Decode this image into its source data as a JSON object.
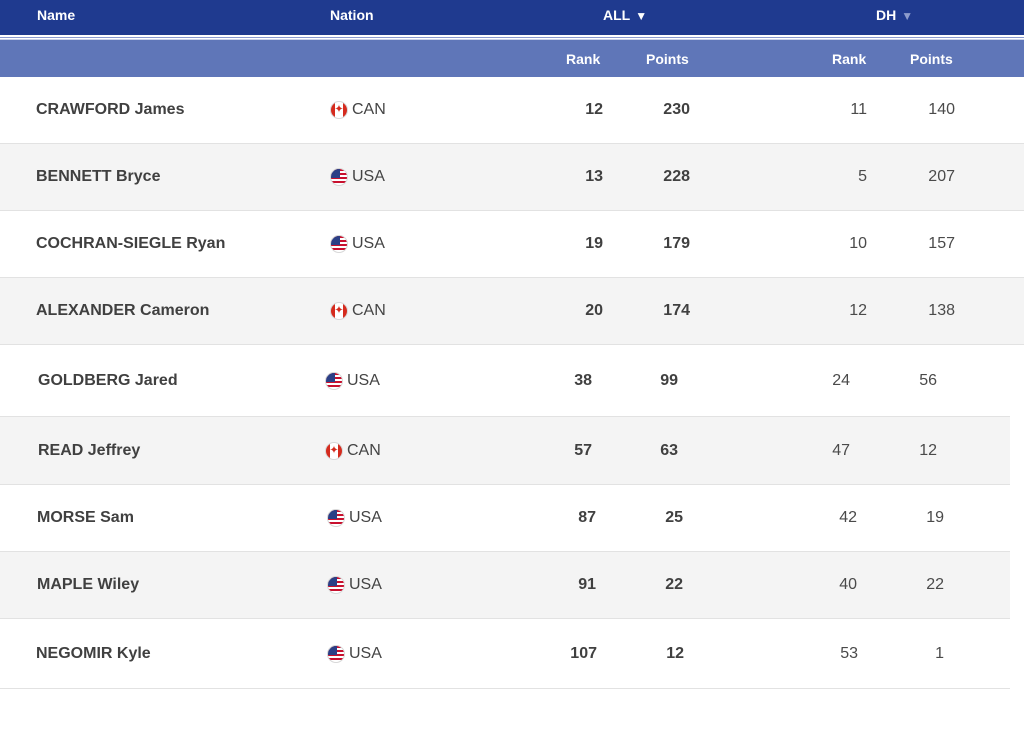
{
  "header": {
    "name_label": "Name",
    "nation_label": "Nation",
    "all_label": "ALL",
    "dh_label": "DH",
    "sort_glyph": "▼",
    "rank_label": "Rank",
    "points_label": "Points"
  },
  "colors": {
    "header_top": "#1f3a8f",
    "header_sub": "#5f76b8",
    "row_alt": "#f4f4f4"
  },
  "icons": {
    "CAN": "canada-flag-icon",
    "USA": "usa-flag-icon"
  },
  "rows": [
    {
      "name": "CRAWFORD James",
      "nation": "CAN",
      "all_rank": "12",
      "all_points": "230",
      "dh_rank": "11",
      "dh_points": "140"
    },
    {
      "name": "BENNETT Bryce",
      "nation": "USA",
      "all_rank": "13",
      "all_points": "228",
      "dh_rank": "5",
      "dh_points": "207"
    },
    {
      "name": "COCHRAN-SIEGLE Ryan",
      "nation": "USA",
      "all_rank": "19",
      "all_points": "179",
      "dh_rank": "10",
      "dh_points": "157"
    },
    {
      "name": "ALEXANDER Cameron",
      "nation": "CAN",
      "all_rank": "20",
      "all_points": "174",
      "dh_rank": "12",
      "dh_points": "138"
    },
    {
      "name": "GOLDBERG Jared",
      "nation": "USA",
      "all_rank": "38",
      "all_points": "99",
      "dh_rank": "24",
      "dh_points": "56"
    },
    {
      "name": "READ Jeffrey",
      "nation": "CAN",
      "all_rank": "57",
      "all_points": "63",
      "dh_rank": "47",
      "dh_points": "12"
    },
    {
      "name": "MORSE Sam",
      "nation": "USA",
      "all_rank": "87",
      "all_points": "25",
      "dh_rank": "42",
      "dh_points": "19"
    },
    {
      "name": "MAPLE Wiley",
      "nation": "USA",
      "all_rank": "91",
      "all_points": "22",
      "dh_rank": "40",
      "dh_points": "22"
    },
    {
      "name": "NEGOMIR Kyle",
      "nation": "USA",
      "all_rank": "107",
      "all_points": "12",
      "dh_rank": "53",
      "dh_points": "1"
    }
  ]
}
